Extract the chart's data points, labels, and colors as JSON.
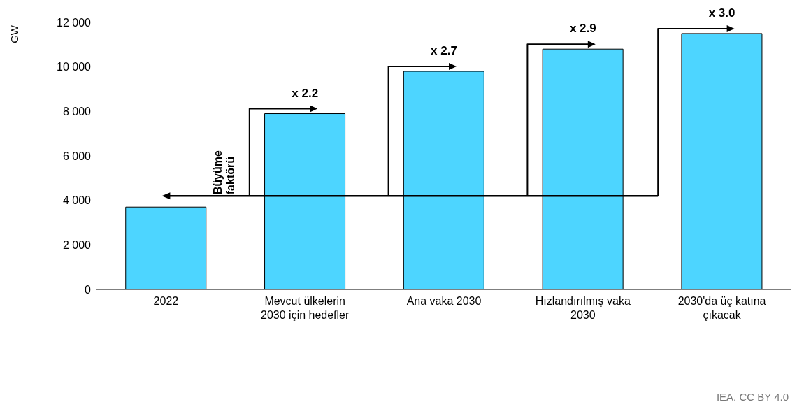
{
  "chart_data": {
    "type": "bar",
    "ylabel": "GW",
    "categories": [
      "2022",
      "Mevcut ülkelerin 2030 için hedefler",
      "Ana vaka 2030",
      "Hızlandırılmış vaka 2030",
      "2030'da üç katına çıkacak"
    ],
    "values": [
      3700,
      7900,
      9800,
      10800,
      11500
    ],
    "color": "#4dd5ff",
    "ylim": [
      0,
      12000
    ],
    "yticks": [
      0,
      {
        "value": 2000,
        "label": "2 000"
      },
      {
        "value": 4000,
        "label": "4 000"
      },
      {
        "value": 6000,
        "label": "6 000"
      },
      {
        "value": 8000,
        "label": "8 000"
      },
      {
        "value": 10000,
        "label": "10 000"
      },
      {
        "value": 12000,
        "label": "12 000"
      }
    ],
    "grid": false,
    "annotations": [
      "x 2.2",
      "x 2.7",
      "x 2.9",
      "x 3.0",
      "Büyüme faktörü",
      "IEA. CC BY 4.0"
    ]
  }
}
